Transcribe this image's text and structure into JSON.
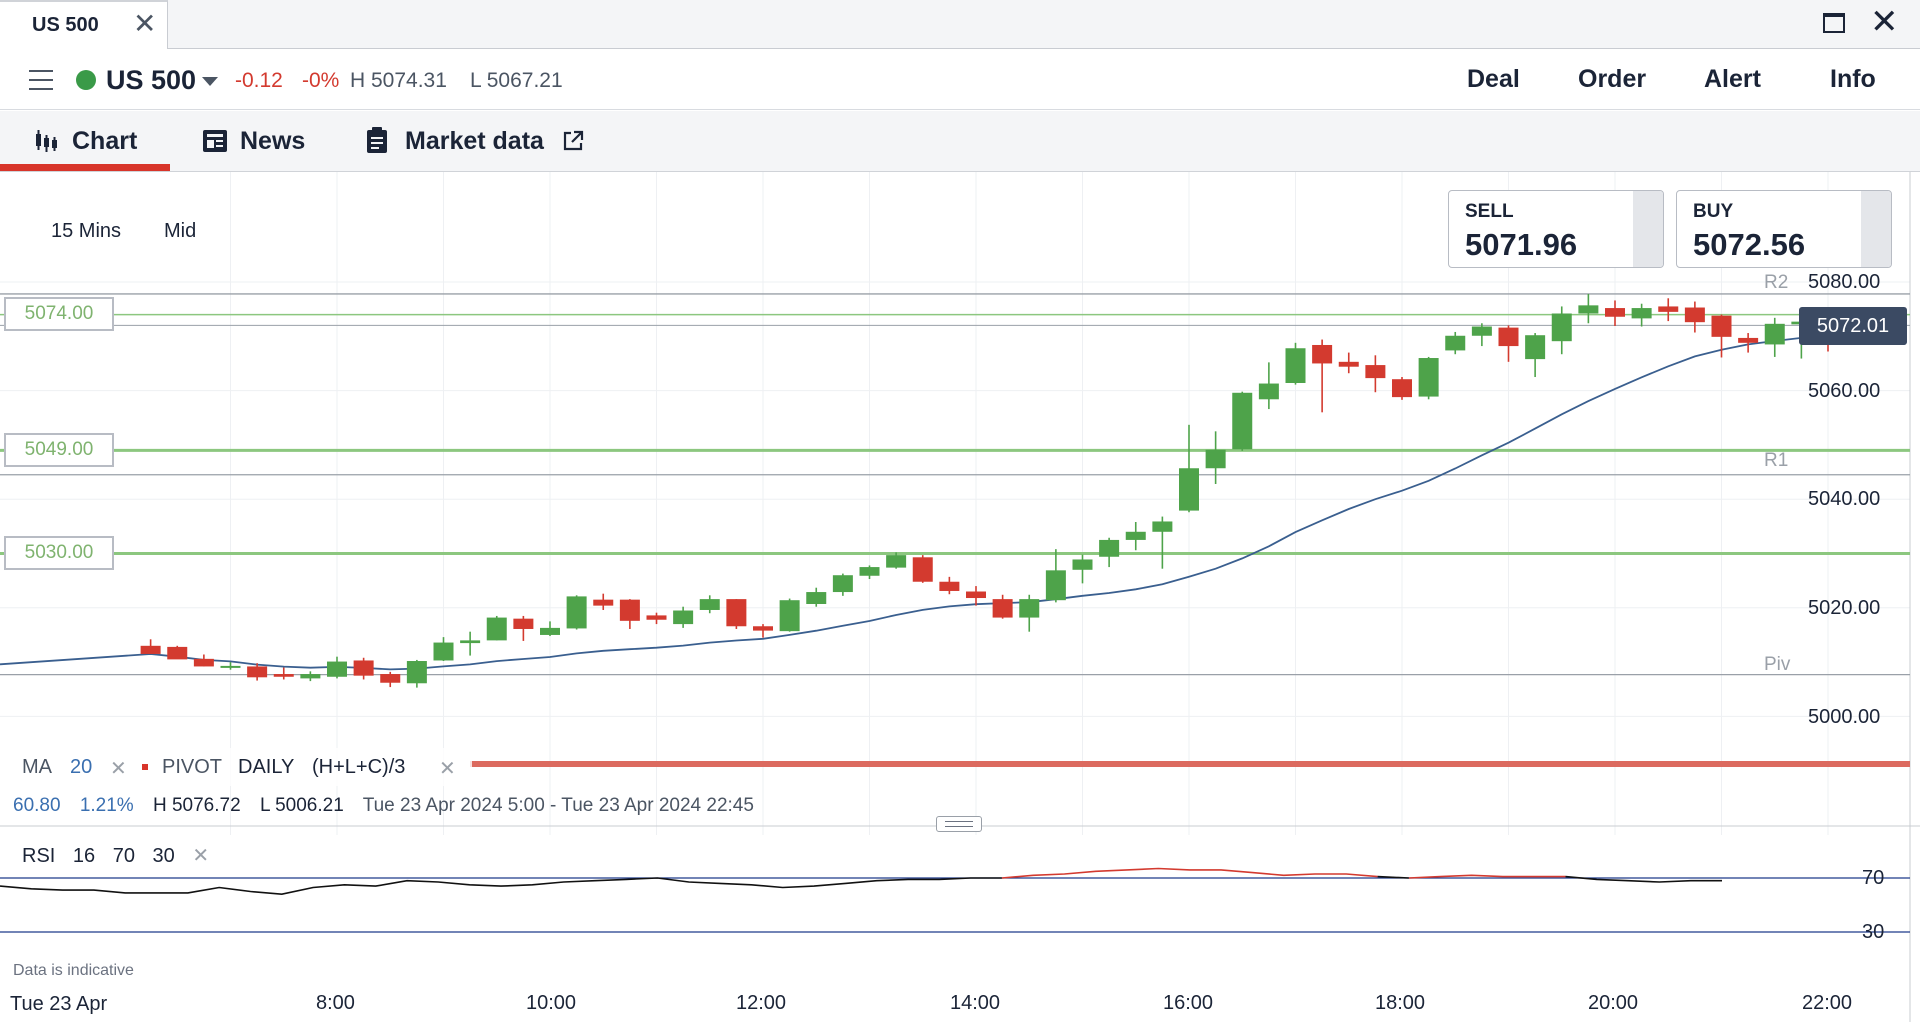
{
  "window": {
    "tab_title": "US 500",
    "tab_close": "✕",
    "close_glyph": "✕"
  },
  "instrument": {
    "name": "US 500",
    "change": "-0.12",
    "change_pct": "-0%",
    "high": "H 5074.31",
    "low": "L 5067.21",
    "status_color": "#3a9a48"
  },
  "actions": [
    "Deal",
    "Order",
    "Alert",
    "Info"
  ],
  "tabs": [
    {
      "label": "Chart",
      "icon": "candlestick-icon",
      "active": true
    },
    {
      "label": "News",
      "icon": "newspaper-icon",
      "active": false
    },
    {
      "label": "Market data",
      "icon": "clipboard-icon",
      "active": false
    }
  ],
  "chart_controls": {
    "timeframe": "15 Mins",
    "price_type": "Mid"
  },
  "quotes": {
    "sell_label": "SELL",
    "sell": "5071.96",
    "buy_label": "BUY",
    "buy": "5072.56"
  },
  "price_levels": [
    "5074.00",
    "5049.00",
    "5030.00"
  ],
  "pivot_labels": [
    "R2",
    "R1",
    "Piv"
  ],
  "current_price": "5072.01",
  "indicators": {
    "ma": "MA",
    "ma_period": "20",
    "pivot": "PIVOT",
    "pivot_period": "DAILY",
    "pivot_formula": "(H+L+C)/3",
    "remove": "✕"
  },
  "stats": {
    "change": "60.80",
    "pct": "1.21%",
    "high": "H 5076.72",
    "low": "L 5006.21",
    "range": "Tue 23 Apr 2024 5:00 - Tue 23 Apr 2024 22:45"
  },
  "rsi": {
    "label": "RSI",
    "period": "16",
    "upper": "70",
    "lower": "30",
    "remove": "✕"
  },
  "disclaimer": "Data is indicative",
  "date_stamp": "Tue 23 Apr",
  "colors": {
    "up": "#4ea34a",
    "down": "#d33a2f",
    "ma": "#3a5f8f",
    "level": "#8cc77f",
    "accent": "#d8352a"
  },
  "chart_data": {
    "type": "candlestick",
    "timeframe": "15 Mins",
    "y_ticks": [
      5080,
      5060,
      5040,
      5020,
      5000
    ],
    "x_ticks": [
      "8:00",
      "10:00",
      "12:00",
      "14:00",
      "16:00",
      "18:00",
      "20:00",
      "22:00"
    ],
    "levels": [
      5074,
      5049,
      5030
    ],
    "pivots": {
      "R2": 5077.8,
      "R1": 5044.5,
      "Piv": 5007.7
    },
    "current": 5072.01,
    "candles_ohlc": [
      [
        6.25,
        5013,
        5014.2,
        5011.8,
        5011.5
      ],
      [
        6.5,
        5012.8,
        5013,
        5010.8,
        5010.5
      ],
      [
        6.75,
        5010.6,
        5011.4,
        5009.2,
        5009.2
      ],
      [
        7,
        5009.2,
        5010,
        5008.6,
        5009.3
      ],
      [
        7.25,
        5009.2,
        5009.8,
        5006.6,
        5007.2
      ],
      [
        7.5,
        5007.8,
        5009,
        5006.8,
        5007.3
      ],
      [
        7.75,
        5007,
        5008.3,
        5006.5,
        5007.8
      ],
      [
        8,
        5007.3,
        5011,
        5007,
        5010.1
      ],
      [
        8.25,
        5010.3,
        5010.8,
        5006.8,
        5007.5
      ],
      [
        8.5,
        5007.8,
        5008.2,
        5005.4,
        5006.2
      ],
      [
        8.75,
        5006.1,
        5010.4,
        5005.3,
        5010.2
      ],
      [
        9,
        5010.3,
        5014.6,
        5010.2,
        5013.6
      ],
      [
        9.25,
        5013.5,
        5015.6,
        5011.2,
        5014
      ],
      [
        9.5,
        5014,
        5018.5,
        5014,
        5018.2
      ],
      [
        9.75,
        5018,
        5018.5,
        5013.9,
        5016.1
      ],
      [
        10,
        5015,
        5017.5,
        5014.8,
        5016.3
      ],
      [
        10.25,
        5016.2,
        5022.3,
        5016,
        5022.1
      ],
      [
        10.5,
        5021.5,
        5022.6,
        5019.6,
        5020.4
      ],
      [
        10.75,
        5021.5,
        5021.6,
        5016.1,
        5017.6
      ],
      [
        11,
        5018.6,
        5019.1,
        5017,
        5017.8
      ],
      [
        11.25,
        5017,
        5020.2,
        5016.3,
        5019.5
      ],
      [
        11.5,
        5019.6,
        5022.3,
        5019,
        5021.6
      ],
      [
        11.75,
        5021.6,
        5021.6,
        5016.1,
        5016.6
      ],
      [
        12,
        5016.6,
        5017,
        5014.5,
        5015.8
      ],
      [
        12.25,
        5015.7,
        5021.7,
        5015.6,
        5021.4
      ],
      [
        12.5,
        5020.7,
        5023.7,
        5020.2,
        5022.9
      ],
      [
        12.75,
        5022.9,
        5026.3,
        5022.2,
        5026
      ],
      [
        13,
        5025.9,
        5027.8,
        5025.3,
        5027.5
      ],
      [
        13.25,
        5027.4,
        5030.2,
        5027.2,
        5029.7
      ],
      [
        13.5,
        5029.3,
        5029.7,
        5024.6,
        5024.8
      ],
      [
        13.75,
        5024.8,
        5025.7,
        5022.5,
        5023.1
      ],
      [
        14,
        5023,
        5024,
        5020.4,
        5021.8
      ],
      [
        14.25,
        5021.6,
        5022.4,
        5018,
        5018.2
      ],
      [
        14.5,
        5018.2,
        5022.4,
        5015.6,
        5021.6
      ],
      [
        14.75,
        5021.4,
        5030.8,
        5021,
        5026.9
      ],
      [
        15,
        5027,
        5029.8,
        5024.5,
        5028.9
      ],
      [
        15.25,
        5029.4,
        5032.9,
        5027.5,
        5032.5
      ],
      [
        15.5,
        5032.5,
        5035.8,
        5030.6,
        5034
      ],
      [
        15.75,
        5034,
        5036.8,
        5027.2,
        5035.9
      ],
      [
        16,
        5037.9,
        5053.7,
        5037.6,
        5045.7
      ],
      [
        16.25,
        5045.7,
        5052.5,
        5042.8,
        5049.1
      ],
      [
        16.5,
        5049.2,
        5059.8,
        5048.9,
        5059.6
      ],
      [
        16.75,
        5058.4,
        5065.2,
        5056.6,
        5061.3
      ],
      [
        17,
        5061.4,
        5068.8,
        5061.1,
        5067.8
      ],
      [
        17.25,
        5068.4,
        5069.4,
        5056,
        5065
      ],
      [
        17.5,
        5065.3,
        5067,
        5063.2,
        5064.4
      ],
      [
        17.75,
        5064.7,
        5066.5,
        5059.7,
        5062.3
      ],
      [
        18,
        5062.1,
        5062.5,
        5058.3,
        5058.8
      ],
      [
        18.25,
        5058.9,
        5066.2,
        5058.4,
        5066
      ],
      [
        18.5,
        5067.4,
        5070.8,
        5066.7,
        5070.1
      ],
      [
        18.75,
        5070.1,
        5072.4,
        5068.2,
        5071.8
      ],
      [
        19,
        5071.6,
        5072,
        5065.3,
        5068.2
      ],
      [
        19.25,
        5065.8,
        5070.6,
        5062.5,
        5070.2
      ],
      [
        19.5,
        5069.1,
        5075.5,
        5066.7,
        5074.2
      ],
      [
        19.75,
        5074.2,
        5077.8,
        5072.4,
        5075.7
      ],
      [
        20,
        5075.2,
        5076.6,
        5071.9,
        5073.6
      ],
      [
        20.25,
        5073.3,
        5076,
        5071.8,
        5075.2
      ],
      [
        20.5,
        5075.5,
        5077,
        5072.8,
        5074.5
      ],
      [
        20.75,
        5075.3,
        5076.4,
        5070.7,
        5072.6
      ],
      [
        21,
        5073.8,
        5074,
        5066.1,
        5069.9
      ],
      [
        21.25,
        5069.7,
        5070.6,
        5067,
        5068.8
      ],
      [
        21.5,
        5068.5,
        5073.4,
        5066.2,
        5072.3
      ],
      [
        21.75,
        5072.2,
        5073.4,
        5065.9,
        5072.7
      ],
      [
        22,
        5072.7,
        5074.3,
        5067.2,
        5072
      ]
    ],
    "ma_period": 20,
    "rsi_period": 16,
    "rsi_levels": [
      70,
      30
    ],
    "rsi_values": [
      64,
      62,
      61,
      61,
      59,
      59,
      59,
      63,
      60,
      58,
      63,
      65,
      64,
      68,
      67,
      65,
      64,
      65,
      67,
      68,
      69,
      70,
      67,
      66,
      65,
      63,
      64,
      66,
      68,
      69,
      69,
      70,
      70,
      72,
      73,
      75,
      76,
      77,
      76,
      76,
      74,
      72,
      73,
      73,
      71,
      70,
      71,
      72,
      71,
      71,
      71,
      69,
      68,
      67,
      68,
      68
    ]
  }
}
